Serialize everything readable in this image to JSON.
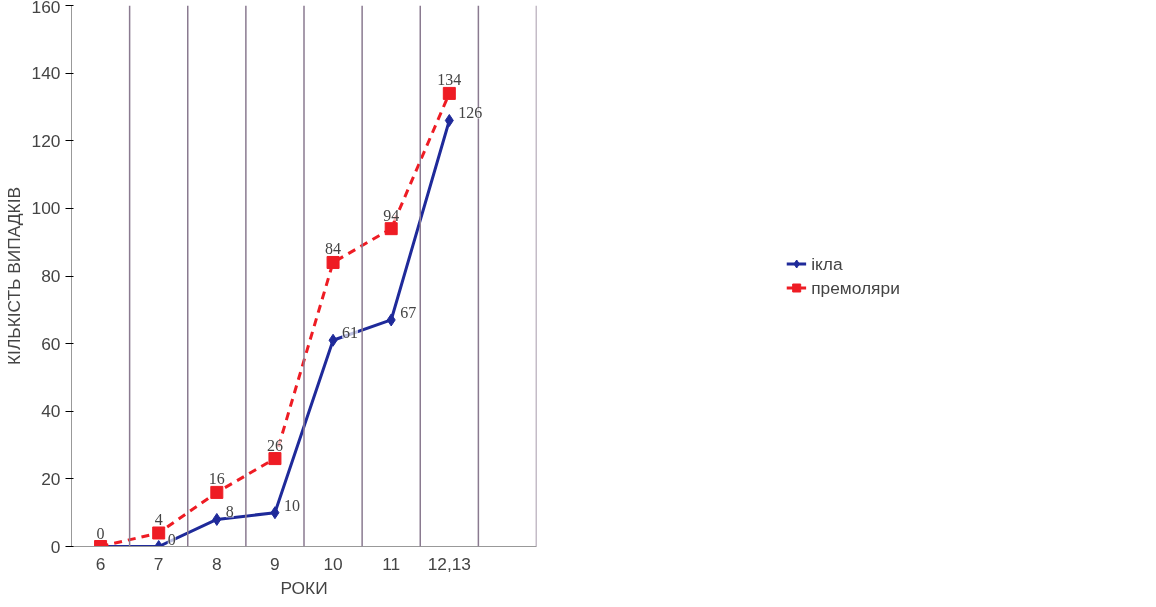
{
  "chart_data": {
    "type": "line",
    "xlabel": "РОКИ",
    "ylabel": "КІЛЬКІСТЬ ВИПАДКІВ",
    "categories": [
      "6",
      "7",
      "8",
      "9",
      "10",
      "11",
      "12,13",
      null
    ],
    "series": [
      {
        "name": "ікла",
        "color": "#1f2a9a",
        "marker": "diamond",
        "line_style": "solid",
        "values": [
          0,
          0,
          8,
          10,
          61,
          67,
          126,
          null
        ],
        "value_labels": [
          null,
          "0",
          "8",
          "10",
          "61",
          "67",
          "126",
          null
        ]
      },
      {
        "name": "премоляри",
        "color": "#ee1c24",
        "marker": "square",
        "line_style": "dashed",
        "values": [
          0,
          4,
          16,
          26,
          84,
          94,
          134,
          null
        ]
      }
    ],
    "ylim": [
      0,
      160
    ],
    "yticks": [
      0,
      20,
      40,
      60,
      80,
      100,
      120,
      140,
      160
    ],
    "grid": "x",
    "legend": "right",
    "data_labels": true
  }
}
